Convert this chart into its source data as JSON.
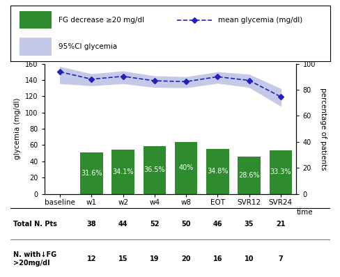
{
  "x_labels": [
    "baseline",
    "w1",
    "w2",
    "w4",
    "w8",
    "EOT",
    "SVR12",
    "SVR24"
  ],
  "bar_categories": [
    "w1",
    "w2",
    "w4",
    "w8",
    "EOT",
    "SVR12",
    "SVR24"
  ],
  "bar_percentages": [
    31.6,
    34.1,
    36.5,
    40.0,
    34.8,
    28.6,
    33.3
  ],
  "bar_color": "#2e8b2e",
  "mean_glycemia": [
    150.0,
    141.0,
    144.5,
    139.0,
    138.0,
    144.0,
    139.5,
    119.5
  ],
  "ci_upper": [
    156.0,
    147.0,
    150.5,
    144.5,
    143.5,
    149.5,
    146.5,
    129.0
  ],
  "ci_lower": [
    136.0,
    133.5,
    136.0,
    131.5,
    131.0,
    136.5,
    131.5,
    108.5
  ],
  "ylim_left": [
    0,
    160
  ],
  "ylim_right": [
    0,
    100
  ],
  "yticks_left": [
    0,
    20,
    40,
    60,
    80,
    100,
    120,
    140,
    160
  ],
  "yticks_right": [
    0,
    20,
    40,
    60,
    80,
    100
  ],
  "line_color": "#2222bb",
  "ci_color": "#c5c9e8",
  "legend_bar_label": "FG decrease ≥20 mg/dl",
  "legend_line_label": "mean glycemia (mg/dl)",
  "legend_ci_label": "95%CI glycemia",
  "xlabel": "time",
  "ylabel_left": "glycemia (mg/dl)",
  "ylabel_right": "percentage of patients",
  "table_row1_label": "Total N. Pts",
  "table_row2_label": "N. with↓FG\n>20mg/dl",
  "table_row1": [
    38,
    44,
    52,
    50,
    46,
    35,
    21
  ],
  "table_row2": [
    12,
    15,
    19,
    20,
    16,
    10,
    7
  ],
  "bar_text_color": "white",
  "bar_fontsize": 7.0,
  "bar_pct_labels": [
    "31.6%",
    "34.1%",
    "36.5%",
    "40%",
    "34.8%",
    "28.6%",
    "33.3%"
  ]
}
